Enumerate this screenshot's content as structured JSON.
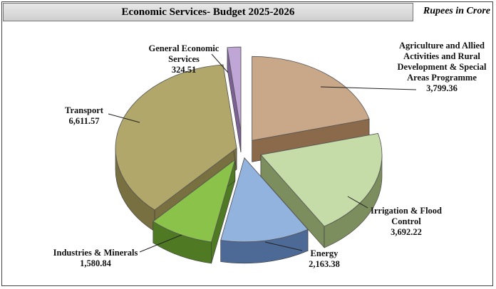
{
  "header": {
    "title": "Economic Services- Budget 2025-2026",
    "unit": "Rupees in Crore"
  },
  "chart_data": {
    "type": "pie",
    "title": "Economic Services- Budget 2025-2026",
    "unit": "Rupees in Crore",
    "slices": [
      {
        "label": [
          "Agriculture and Allied",
          "Activities and Rural",
          "Development & Special",
          "Areas Programme"
        ],
        "value_text": "3,799.36",
        "value": 3799.36,
        "color": "#c8a888",
        "side": "#8a6a4a"
      },
      {
        "label": [
          "Irrigation & Flood",
          "Control"
        ],
        "value_text": "3,692.22",
        "value": 3692.22,
        "color": "#c6dca8",
        "side": "#7d8e5e"
      },
      {
        "label": [
          "Energy"
        ],
        "value_text": "2,163.38",
        "value": 2163.38,
        "color": "#93b3df",
        "side": "#4d6a96"
      },
      {
        "label": [
          "Industries & Minerals"
        ],
        "value_text": "1,580.84",
        "value": 1580.84,
        "color": "#8bc34a",
        "side": "#4f7a23"
      },
      {
        "label": [
          "Transport"
        ],
        "value_text": "6,611.57",
        "value": 6611.57,
        "color": "#b2a76a",
        "side": "#787040"
      },
      {
        "label": [
          "General Economic",
          "Services"
        ],
        "value_text": "324.51",
        "value": 324.51,
        "color": "#c0a6d6",
        "side": "#7c6294"
      }
    ]
  }
}
